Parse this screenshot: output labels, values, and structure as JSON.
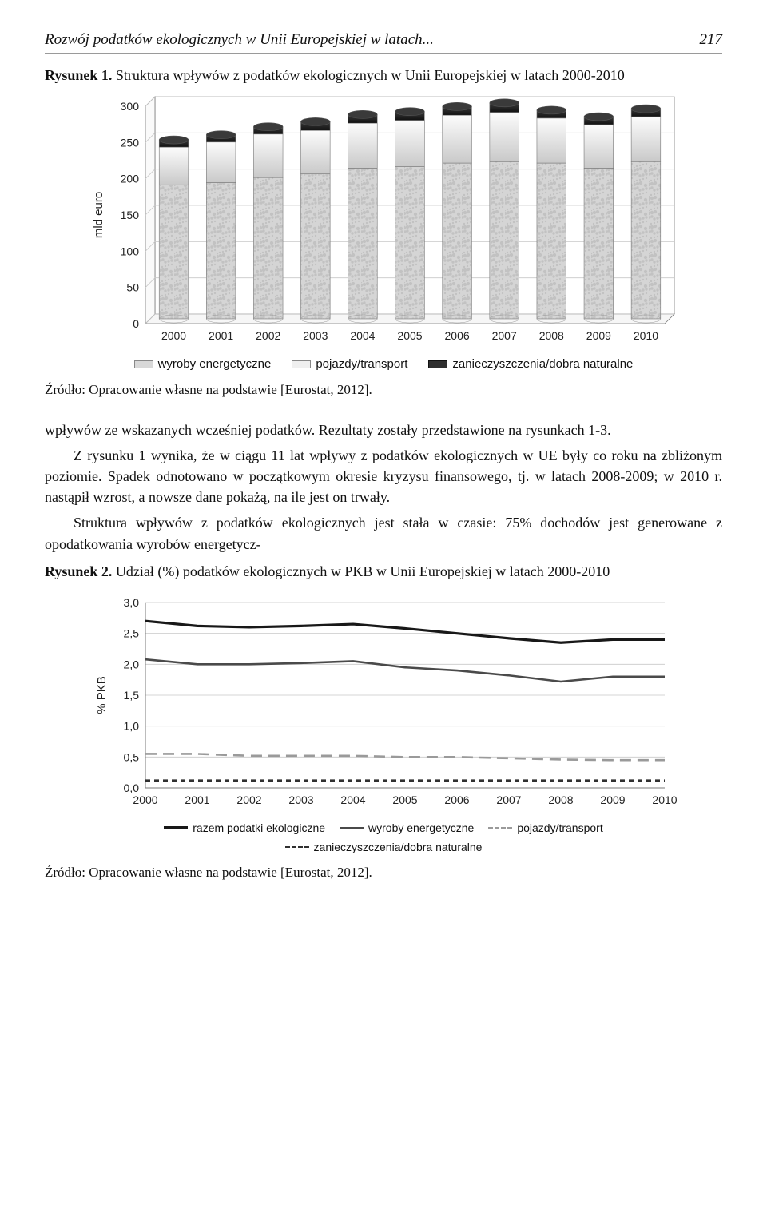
{
  "running_head": {
    "title": "Rozwój podatków ekologicznych w Unii Europejskiej w latach...",
    "page": "217"
  },
  "fig1": {
    "lead": "Rysunek 1.",
    "caption": "Struktura wpływów z podatków ekologicznych w Unii Europejskiej w latach 2000-2010",
    "chart": {
      "type": "stacked-bar-3d",
      "y_label": "mld euro",
      "ylim": [
        0,
        300
      ],
      "ytick_step": 50,
      "categories": [
        "2000",
        "2001",
        "2002",
        "2003",
        "2004",
        "2005",
        "2006",
        "2007",
        "2008",
        "2009",
        "2010"
      ],
      "series": [
        {
          "name": "wyroby energetyczne",
          "fill_top": "#f0f0f0",
          "fill_bottom": "#b8b8b8",
          "pattern": "rock",
          "values": [
            185,
            188,
            195,
            200,
            208,
            210,
            215,
            217,
            215,
            208,
            217
          ]
        },
        {
          "name": "pojazdy/transport",
          "fill_top": "#fcfcfc",
          "fill_bottom": "#c9c9c9",
          "pattern": "none",
          "values": [
            52,
            56,
            60,
            60,
            62,
            64,
            66,
            68,
            62,
            60,
            62
          ]
        },
        {
          "name": "zanieczyszczenia/dobra naturalne",
          "fill_top": "#3a3a3a",
          "fill_bottom": "#111111",
          "pattern": "none",
          "values": [
            10,
            10,
            10,
            12,
            12,
            12,
            12,
            13,
            11,
            11,
            11
          ]
        }
      ],
      "bar_width": 0.62,
      "background_color": "#ffffff",
      "grid_color": "#c9c9c9",
      "border_color": "#7a7a7a",
      "text_color": "#222222",
      "axis_fontsize": 15,
      "tick_fontsize": 14
    },
    "legend": {
      "items": [
        {
          "label": "wyroby energetyczne",
          "fill": "#d8d8d8",
          "border": "#888"
        },
        {
          "label": "pojazdy/transport",
          "fill": "#efefef",
          "border": "#888"
        },
        {
          "label": "zanieczyszczenia/dobra naturalne",
          "fill": "#2e2e2e",
          "border": "#111"
        }
      ]
    },
    "source": "Źródło: Opracowanie własne na podstawie [Eurostat, 2012]."
  },
  "body_paragraphs": {
    "p0": "wpływów ze wskazanych wcześniej podatków. Rezultaty zostały przedstawione na rysunkach 1-3.",
    "p1": "Z rysunku 1 wynika, że w ciągu 11 lat wpływy z podatków ekologicznych w UE były co roku na zbliżonym poziomie. Spadek odnotowano w początkowym okresie kryzysu finansowego, tj. w latach 2008-2009; w 2010 r. nastąpił wzrost, a nowsze dane pokażą, na ile jest on trwały.",
    "p2": "Struktura wpływów z podatków ekologicznych jest stała w czasie: 75% dochodów jest generowane z opodatkowania wyrobów energetycz-"
  },
  "fig2": {
    "lead": "Rysunek 2.",
    "caption": "Udział (%) podatków ekologicznych w PKB w Unii Europejskiej w latach 2000-2010",
    "chart": {
      "type": "line",
      "y_label": "% PKB",
      "ylim": [
        0,
        3.0
      ],
      "ytick_step": 0.5,
      "categories": [
        "2000",
        "2001",
        "2002",
        "2003",
        "2004",
        "2005",
        "2006",
        "2007",
        "2008",
        "2009",
        "2010"
      ],
      "series": [
        {
          "name": "razem podatki ekologiczne",
          "color": "#181818",
          "width": 3.2,
          "dash": "none",
          "values": [
            2.7,
            2.62,
            2.6,
            2.62,
            2.65,
            2.58,
            2.5,
            2.42,
            2.35,
            2.4,
            2.4
          ]
        },
        {
          "name": "wyroby energetyczne",
          "color": "#4a4a4a",
          "width": 2.6,
          "dash": "none",
          "values": [
            2.08,
            2.0,
            2.0,
            2.02,
            2.05,
            1.95,
            1.9,
            1.82,
            1.72,
            1.8,
            1.8
          ]
        },
        {
          "name": "pojazdy/transport",
          "color": "#9a9a9a",
          "width": 2.6,
          "dash": "longdash",
          "values": [
            0.55,
            0.55,
            0.52,
            0.52,
            0.52,
            0.5,
            0.5,
            0.48,
            0.46,
            0.45,
            0.45
          ]
        },
        {
          "name": "zanieczyszczenia/dobra naturalne",
          "color": "#303030",
          "width": 2.8,
          "dash": "dash",
          "values": [
            0.12,
            0.12,
            0.12,
            0.12,
            0.12,
            0.12,
            0.12,
            0.12,
            0.12,
            0.12,
            0.12
          ]
        }
      ],
      "background_color": "#ffffff",
      "grid_color": "#c8c8c8",
      "border_color": "#7a7a7a",
      "text_color": "#222222",
      "axis_fontsize": 15,
      "tick_fontsize": 14
    },
    "legend": {
      "items": [
        {
          "label": "razem podatki ekologiczne",
          "color": "#181818",
          "dash": "none",
          "width": 3.2
        },
        {
          "label": "wyroby energetyczne",
          "color": "#4a4a4a",
          "dash": "none",
          "width": 2.6
        },
        {
          "label": "pojazdy/transport",
          "color": "#9a9a9a",
          "dash": "longdash",
          "width": 2.6
        },
        {
          "label": "zanieczyszczenia/dobra naturalne",
          "color": "#303030",
          "dash": "dash",
          "width": 2.8
        }
      ]
    },
    "source": "Źródło: Opracowanie własne na podstawie [Eurostat, 2012]."
  }
}
